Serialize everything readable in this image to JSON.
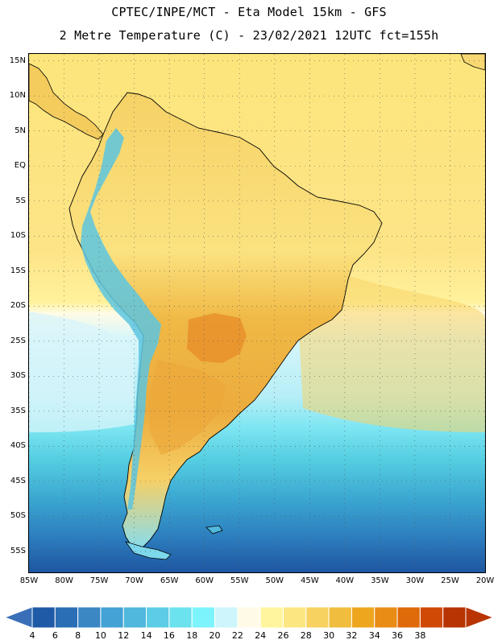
{
  "header": {
    "line1": "CPTEC/INPE/MCT -  Eta Model 15km - GFS",
    "line2": "2 Metre Temperature (C) - 23/02/2021 12UTC fct=155h"
  },
  "map": {
    "lon_min": -85,
    "lon_max": -20,
    "lat_min": -58,
    "lat_max": 16,
    "lat_ticks": [
      {
        "value": 15,
        "label": "15N"
      },
      {
        "value": 10,
        "label": "10N"
      },
      {
        "value": 5,
        "label": "5N"
      },
      {
        "value": 0,
        "label": "EQ"
      },
      {
        "value": -5,
        "label": "5S"
      },
      {
        "value": -10,
        "label": "10S"
      },
      {
        "value": -15,
        "label": "15S"
      },
      {
        "value": -20,
        "label": "20S"
      },
      {
        "value": -25,
        "label": "25S"
      },
      {
        "value": -30,
        "label": "30S"
      },
      {
        "value": -35,
        "label": "35S"
      },
      {
        "value": -40,
        "label": "40S"
      },
      {
        "value": -45,
        "label": "45S"
      },
      {
        "value": -50,
        "label": "50S"
      },
      {
        "value": -55,
        "label": "55S"
      }
    ],
    "lon_ticks": [
      {
        "value": -85,
        "label": "85W"
      },
      {
        "value": -80,
        "label": "80W"
      },
      {
        "value": -75,
        "label": "75W"
      },
      {
        "value": -70,
        "label": "70W"
      },
      {
        "value": -65,
        "label": "65W"
      },
      {
        "value": -60,
        "label": "60W"
      },
      {
        "value": -55,
        "label": "55W"
      },
      {
        "value": -50,
        "label": "50W"
      },
      {
        "value": -45,
        "label": "45W"
      },
      {
        "value": -40,
        "label": "40W"
      },
      {
        "value": -35,
        "label": "35W"
      },
      {
        "value": -30,
        "label": "30W"
      },
      {
        "value": -25,
        "label": "25W"
      },
      {
        "value": -20,
        "label": "20W"
      }
    ],
    "grid": "dotted"
  },
  "colorbar": {
    "labels": [
      "4",
      "6",
      "8",
      "10",
      "12",
      "14",
      "16",
      "18",
      "20",
      "22",
      "24",
      "26",
      "28",
      "30",
      "32",
      "34",
      "36",
      "38"
    ],
    "colors": [
      "#1f5aa6",
      "#2a6fb6",
      "#3a87c4",
      "#44a2d4",
      "#4fb8dc",
      "#5ccde4",
      "#6be2ee",
      "#7df4fb",
      "#cdf5fb",
      "#fffbe6",
      "#fff59e",
      "#fce682",
      "#f7d260",
      "#f1bd3e",
      "#eda61e",
      "#e88c15",
      "#df6a0a",
      "#d04a05",
      "#b83402"
    ],
    "low_arrow": "#3a6fb8",
    "high_arrow": "#b83402"
  }
}
